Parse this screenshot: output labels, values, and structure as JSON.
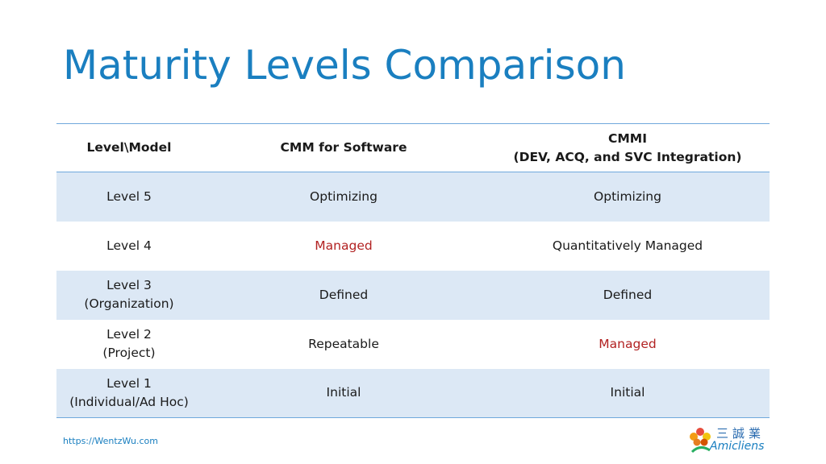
{
  "slide": {
    "title": "Maturity Levels Comparison",
    "footer_url": "https://WentzWu.com"
  },
  "table": {
    "headers": {
      "col1": "Level\\Model",
      "col2": "CMM for Software",
      "col3_line1": "CMMI",
      "col3_line2": "(DEV, ACQ, and SVC Integration)"
    },
    "rows": [
      {
        "level_line1": "Level 5",
        "level_line2": "",
        "cmm": "Optimizing",
        "cmmi": "Optimizing"
      },
      {
        "level_line1": "Level 4",
        "level_line2": "",
        "cmm": "Managed",
        "cmmi": "Quantitatively Managed"
      },
      {
        "level_line1": "Level 3",
        "level_line2": "(Organization)",
        "cmm": "Defined",
        "cmmi": "Defined"
      },
      {
        "level_line1": "Level 2",
        "level_line2": "(Project)",
        "cmm": "Repeatable",
        "cmmi": "Managed"
      },
      {
        "level_line1": "Level 1",
        "level_line2": "(Individual/Ad Hoc)",
        "cmm": "Initial",
        "cmmi": "Initial"
      }
    ]
  },
  "logo": {
    "chinese_text": "三誠業",
    "english_text": "Amicliens",
    "icon": "flower-logo-icon"
  },
  "colors": {
    "title": "#1a7fc0",
    "table_rule": "#6fa8dc",
    "shaded_row": "#dce8f5",
    "highlight_red": "#b22222"
  }
}
